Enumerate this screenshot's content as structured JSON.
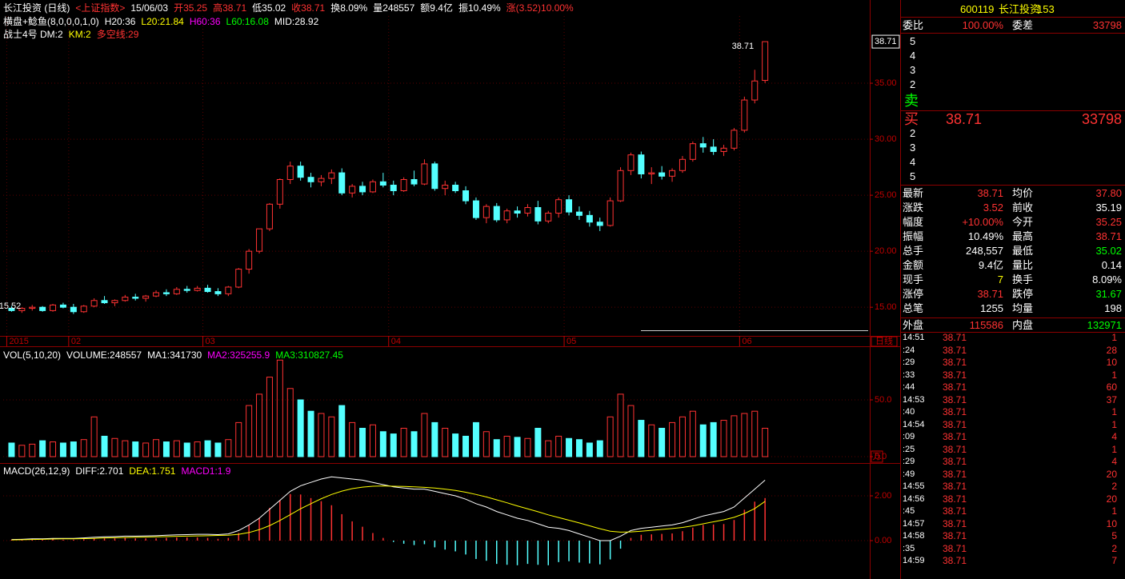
{
  "kline": {
    "header": [
      {
        "text": "长江投资 (日线)",
        "color": "#ffffff"
      },
      {
        "text": "<上证指数>",
        "color": "#ff3232"
      },
      {
        "text": "15/06/03",
        "color": "#ffffff"
      },
      {
        "text": "开35.25",
        "color": "#ff3232"
      },
      {
        "text": "高38.71",
        "color": "#ff3232"
      },
      {
        "text": "低35.02",
        "color": "#ffffff"
      },
      {
        "text": "收38.71",
        "color": "#ff3232"
      },
      {
        "text": "换8.09%",
        "color": "#ffffff"
      },
      {
        "text": "量248557",
        "color": "#ffffff"
      },
      {
        "text": "额9.4亿",
        "color": "#ffffff"
      },
      {
        "text": "振10.49%",
        "color": "#ffffff"
      },
      {
        "text": "涨(3.52)10.00%",
        "color": "#ff3232"
      }
    ],
    "indicator1": [
      {
        "text": "横盘+鲶鱼(8,0,0,0,1,0)",
        "color": "#ffffff"
      },
      {
        "text": "H20:36",
        "color": "#ffffff"
      },
      {
        "text": "L20:21.84",
        "color": "#ffff00"
      },
      {
        "text": "H60:36",
        "color": "#ff00ff"
      },
      {
        "text": "L60:16.08",
        "color": "#00ff00"
      },
      {
        "text": "MID:28.92",
        "color": "#ffffff"
      }
    ],
    "indicator2": [
      {
        "text": "战士4号 DM:2",
        "color": "#ffffff"
      },
      {
        "text": "KM:2",
        "color": "#ffff00"
      },
      {
        "text": "多空线:29",
        "color": "#ff3232"
      }
    ],
    "up_color": "#ff3232",
    "down_color": "#54ffff",
    "ylim": [
      12.8,
      41
    ],
    "yticks": [
      {
        "value": 15,
        "label": "15.00"
      },
      {
        "value": 20,
        "label": "20.00"
      },
      {
        "value": 25,
        "label": "25.00"
      },
      {
        "value": 30,
        "label": "30.00"
      },
      {
        "value": 35,
        "label": "35.00"
      }
    ],
    "last": {
      "value": 38.71,
      "label": "38.71"
    },
    "annotations": [
      {
        "index": 73,
        "value": 38.71,
        "label": "38.71"
      },
      {
        "index": 2,
        "value": 15.52,
        "label": "15.52"
      }
    ],
    "months": [
      {
        "index": 0,
        "label": "2015"
      },
      {
        "index": 6,
        "label": "02"
      },
      {
        "index": 19,
        "label": "03"
      },
      {
        "index": 37,
        "label": "04"
      },
      {
        "index": 54,
        "label": "05"
      },
      {
        "index": 71,
        "label": "06"
      }
    ],
    "period_label": "日线",
    "ohlc": [
      [
        14.9,
        15.1,
        14.6,
        14.7
      ],
      [
        14.7,
        15.0,
        14.5,
        14.9
      ],
      [
        14.9,
        15.2,
        14.7,
        15.0
      ],
      [
        15.0,
        15.1,
        14.6,
        14.7
      ],
      [
        14.7,
        15.3,
        14.6,
        15.2
      ],
      [
        15.2,
        15.4,
        14.9,
        15.0
      ],
      [
        15.0,
        15.3,
        14.4,
        14.6
      ],
      [
        14.6,
        15.2,
        14.5,
        15.1
      ],
      [
        15.1,
        15.8,
        15.0,
        15.6
      ],
      [
        15.6,
        16.0,
        15.3,
        15.4
      ],
      [
        15.4,
        15.7,
        15.1,
        15.6
      ],
      [
        15.6,
        16.1,
        15.5,
        15.9
      ],
      [
        15.9,
        16.2,
        15.6,
        15.8
      ],
      [
        15.8,
        16.1,
        15.5,
        16.0
      ],
      [
        16.0,
        16.5,
        15.9,
        16.3
      ],
      [
        16.3,
        16.6,
        16.0,
        16.2
      ],
      [
        16.2,
        16.8,
        16.1,
        16.6
      ],
      [
        16.6,
        16.9,
        16.3,
        16.5
      ],
      [
        16.5,
        16.9,
        16.4,
        16.7
      ],
      [
        16.7,
        17.0,
        16.3,
        16.4
      ],
      [
        16.4,
        16.7,
        16.0,
        16.2
      ],
      [
        16.2,
        16.9,
        16.0,
        16.8
      ],
      [
        16.8,
        18.5,
        16.7,
        18.4
      ],
      [
        18.4,
        20.2,
        18.0,
        20.0
      ],
      [
        20.0,
        22.0,
        19.8,
        22.0
      ],
      [
        22.0,
        24.3,
        21.8,
        24.2
      ],
      [
        24.2,
        26.5,
        23.8,
        26.4
      ],
      [
        26.4,
        28.0,
        26.0,
        27.6
      ],
      [
        27.6,
        28.0,
        26.3,
        26.6
      ],
      [
        26.6,
        27.0,
        25.7,
        26.2
      ],
      [
        26.2,
        26.8,
        25.8,
        26.5
      ],
      [
        26.5,
        27.3,
        26.0,
        27.0
      ],
      [
        27.0,
        27.4,
        25.0,
        25.2
      ],
      [
        25.2,
        26.0,
        24.8,
        25.8
      ],
      [
        25.8,
        26.2,
        25.0,
        25.3
      ],
      [
        25.3,
        26.4,
        25.2,
        26.2
      ],
      [
        26.2,
        27.0,
        25.7,
        25.9
      ],
      [
        25.9,
        26.3,
        25.0,
        25.4
      ],
      [
        25.4,
        26.6,
        25.3,
        26.4
      ],
      [
        26.4,
        27.2,
        25.8,
        26.0
      ],
      [
        26.0,
        28.2,
        25.9,
        27.8
      ],
      [
        27.8,
        28.0,
        25.4,
        25.6
      ],
      [
        25.6,
        26.3,
        25.0,
        25.9
      ],
      [
        25.9,
        26.2,
        25.2,
        25.4
      ],
      [
        25.4,
        25.8,
        24.2,
        24.5
      ],
      [
        24.5,
        24.8,
        22.8,
        23.0
      ],
      [
        23.0,
        24.2,
        22.5,
        24.0
      ],
      [
        24.0,
        24.3,
        22.6,
        22.8
      ],
      [
        22.8,
        23.8,
        22.5,
        23.6
      ],
      [
        23.6,
        24.0,
        23.0,
        23.4
      ],
      [
        23.4,
        24.2,
        23.1,
        23.9
      ],
      [
        23.9,
        24.5,
        22.4,
        22.7
      ],
      [
        22.7,
        23.6,
        22.5,
        23.4
      ],
      [
        23.4,
        24.8,
        23.0,
        24.6
      ],
      [
        24.6,
        25.0,
        23.2,
        23.5
      ],
      [
        23.5,
        24.0,
        22.8,
        23.2
      ],
      [
        23.2,
        23.6,
        22.2,
        22.6
      ],
      [
        22.6,
        23.0,
        21.8,
        22.3
      ],
      [
        22.3,
        24.8,
        22.2,
        24.5
      ],
      [
        24.5,
        27.5,
        24.4,
        27.2
      ],
      [
        27.2,
        28.8,
        26.8,
        28.6
      ],
      [
        28.6,
        28.9,
        26.5,
        26.9
      ],
      [
        26.9,
        27.5,
        26.0,
        27.0
      ],
      [
        27.0,
        27.6,
        26.4,
        26.7
      ],
      [
        26.7,
        27.4,
        26.2,
        27.2
      ],
      [
        27.2,
        28.5,
        27.0,
        28.2
      ],
      [
        28.2,
        29.8,
        28.0,
        29.6
      ],
      [
        29.6,
        30.2,
        28.8,
        29.3
      ],
      [
        29.3,
        30.0,
        28.6,
        28.9
      ],
      [
        28.9,
        29.5,
        28.5,
        29.2
      ],
      [
        29.2,
        31.0,
        29.0,
        30.8
      ],
      [
        30.8,
        33.8,
        30.6,
        33.5
      ],
      [
        33.5,
        36.2,
        33.2,
        35.2
      ],
      [
        35.25,
        38.71,
        35.02,
        38.71
      ]
    ]
  },
  "volume": {
    "title": [
      {
        "text": "VOL(5,10,20)",
        "color": "#ffffff"
      },
      {
        "text": "VOLUME:248557",
        "color": "#ffffff"
      },
      {
        "text": "MA1:341730",
        "color": "#ffffff"
      },
      {
        "text": "MA2:325255.9",
        "color": "#ff00ff"
      },
      {
        "text": "MA3:310827.45",
        "color": "#00ff00"
      }
    ],
    "ylim": [
      0,
      85.2
    ],
    "yticks": [
      {
        "value": 0,
        "label": "0.0"
      },
      {
        "value": 50,
        "label": "50.0"
      }
    ],
    "unit": "万",
    "values": [
      12,
      10,
      11,
      14,
      13,
      12,
      13,
      15,
      35,
      18,
      16,
      14,
      13,
      12,
      15,
      13,
      14,
      12,
      13,
      14,
      12,
      15,
      30,
      45,
      55,
      70,
      85,
      60,
      50,
      40,
      38,
      35,
      45,
      30,
      25,
      28,
      22,
      20,
      25,
      22,
      38,
      30,
      25,
      20,
      18,
      30,
      22,
      15,
      18,
      17,
      16,
      25,
      14,
      18,
      16,
      15,
      12,
      14,
      35,
      55,
      45,
      32,
      28,
      25,
      30,
      35,
      40,
      28,
      30,
      32,
      36,
      38,
      40,
      25
    ]
  },
  "macd": {
    "title": [
      {
        "text": "MACD(26,12,9)",
        "color": "#ffffff"
      },
      {
        "text": "DIFF:2.701",
        "color": "#ffffff"
      },
      {
        "text": "DEA:1.751",
        "color": "#ffff00"
      },
      {
        "text": "MACD1:1.9",
        "color": "#ff00ff"
      }
    ],
    "ylim": [
      -1.5,
      3.25
    ],
    "yticks": [
      {
        "value": 0,
        "label": "0.00"
      },
      {
        "value": 2,
        "label": "2.00"
      }
    ],
    "diff_color": "#ffffff",
    "dea_color": "#ffff00",
    "diff": [
      0.05,
      0.06,
      0.08,
      0.08,
      0.1,
      0.1,
      0.1,
      0.12,
      0.15,
      0.17,
      0.18,
      0.2,
      0.2,
      0.21,
      0.22,
      0.24,
      0.26,
      0.27,
      0.28,
      0.28,
      0.27,
      0.3,
      0.45,
      0.7,
      1.0,
      1.4,
      1.8,
      2.2,
      2.45,
      2.6,
      2.75,
      2.85,
      2.8,
      2.75,
      2.7,
      2.6,
      2.5,
      2.4,
      2.35,
      2.3,
      2.3,
      2.2,
      2.1,
      2.0,
      1.85,
      1.65,
      1.5,
      1.3,
      1.15,
      1.0,
      0.9,
      0.75,
      0.6,
      0.55,
      0.45,
      0.3,
      0.15,
      0.0,
      0.0,
      0.2,
      0.45,
      0.55,
      0.6,
      0.65,
      0.7,
      0.8,
      0.95,
      1.1,
      1.2,
      1.3,
      1.5,
      1.9,
      2.3,
      2.701
    ],
    "dea": [
      0.03,
      0.04,
      0.05,
      0.06,
      0.07,
      0.08,
      0.08,
      0.09,
      0.1,
      0.12,
      0.13,
      0.14,
      0.15,
      0.16,
      0.17,
      0.18,
      0.19,
      0.2,
      0.21,
      0.22,
      0.23,
      0.24,
      0.28,
      0.36,
      0.49,
      0.67,
      0.9,
      1.16,
      1.42,
      1.65,
      1.87,
      2.06,
      2.21,
      2.32,
      2.39,
      2.43,
      2.44,
      2.43,
      2.42,
      2.4,
      2.38,
      2.35,
      2.3,
      2.24,
      2.16,
      2.06,
      1.95,
      1.82,
      1.69,
      1.55,
      1.42,
      1.29,
      1.15,
      1.03,
      0.91,
      0.79,
      0.66,
      0.53,
      0.42,
      0.38,
      0.39,
      0.42,
      0.46,
      0.5,
      0.54,
      0.59,
      0.66,
      0.75,
      0.84,
      0.93,
      1.04,
      1.21,
      1.43,
      1.751
    ],
    "bars": [
      0.04,
      0.04,
      0.06,
      0.04,
      0.06,
      0.04,
      0.04,
      0.06,
      0.1,
      0.1,
      0.1,
      0.12,
      0.1,
      0.1,
      0.1,
      0.12,
      0.14,
      0.14,
      0.14,
      0.12,
      0.08,
      0.12,
      0.34,
      0.68,
      1.02,
      1.46,
      1.8,
      2.08,
      2.06,
      1.9,
      1.76,
      1.58,
      1.18,
      0.86,
      0.62,
      0.34,
      0.12,
      -0.06,
      -0.14,
      -0.2,
      -0.16,
      -0.3,
      -0.4,
      -0.48,
      -0.62,
      -0.82,
      -0.9,
      -1.04,
      -1.08,
      -1.1,
      -1.04,
      -1.08,
      -1.1,
      -0.96,
      -0.92,
      -0.98,
      -1.02,
      -1.06,
      -0.84,
      -0.36,
      0.12,
      0.26,
      0.28,
      0.3,
      0.32,
      0.42,
      0.58,
      0.7,
      0.72,
      0.74,
      0.92,
      1.38,
      1.74,
      1.9
    ]
  },
  "quote": {
    "code": "600119",
    "name": "长江投资",
    "num": "153",
    "ratio_label": "委比",
    "ratio": "100.00%",
    "diff_label": "委差",
    "diff": "33798",
    "sell_levels": [
      "5",
      "4",
      "3",
      "2"
    ],
    "sell_label": "卖",
    "buy_label": "买",
    "buy1_price": "38.71",
    "buy1_volume": "33798",
    "buy_levels": [
      "2",
      "3",
      "4",
      "5"
    ],
    "stats": [
      {
        "label": "最新",
        "value": "38.71",
        "color": "#ff3232"
      },
      {
        "label": "均价",
        "value": "37.80",
        "color": "#ff3232"
      },
      {
        "label": "涨跌",
        "value": "3.52",
        "color": "#ff3232"
      },
      {
        "label": "前收",
        "value": "35.19",
        "color": "#ffffff"
      },
      {
        "label": "幅度",
        "value": "+10.00%",
        "color": "#ff3232"
      },
      {
        "label": "今开",
        "value": "35.25",
        "color": "#ff3232"
      },
      {
        "label": "振幅",
        "value": "10.49%",
        "color": "#ffffff"
      },
      {
        "label": "最高",
        "value": "38.71",
        "color": "#ff3232"
      },
      {
        "label": "总手",
        "value": "248,557",
        "color": "#ffffff"
      },
      {
        "label": "最低",
        "value": "35.02",
        "color": "#00ff00"
      },
      {
        "label": "金额",
        "value": "9.4亿",
        "color": "#ffffff"
      },
      {
        "label": "量比",
        "value": "0.14",
        "color": "#ffffff"
      },
      {
        "label": "现手",
        "value": "7",
        "color": "#ffff00"
      },
      {
        "label": "换手",
        "value": "8.09%",
        "color": "#ffffff"
      },
      {
        "label": "涨停",
        "value": "38.71",
        "color": "#ff3232"
      },
      {
        "label": "跌停",
        "value": "31.67",
        "color": "#00ff00"
      },
      {
        "label": "总笔",
        "value": "1255",
        "color": "#ffffff"
      },
      {
        "label": "均量",
        "value": "198",
        "color": "#ffffff"
      }
    ],
    "outer_label": "外盘",
    "outer": "115586",
    "inner_label": "内盘",
    "inner": "132971",
    "ticks": [
      {
        "time": "14:51",
        "price": "38.71",
        "volume": "1"
      },
      {
        "time": ":24",
        "price": "38.71",
        "volume": "28"
      },
      {
        "time": ":29",
        "price": "38.71",
        "volume": "10"
      },
      {
        "time": ":33",
        "price": "38.71",
        "volume": "1"
      },
      {
        "time": ":44",
        "price": "38.71",
        "volume": "60"
      },
      {
        "time": "14:53",
        "price": "38.71",
        "volume": "37"
      },
      {
        "time": ":40",
        "price": "38.71",
        "volume": "1"
      },
      {
        "time": "14:54",
        "price": "38.71",
        "volume": "1"
      },
      {
        "time": ":09",
        "price": "38.71",
        "volume": "4"
      },
      {
        "time": ":25",
        "price": "38.71",
        "volume": "1"
      },
      {
        "time": ":29",
        "price": "38.71",
        "volume": "4"
      },
      {
        "time": ":49",
        "price": "38.71",
        "volume": "20"
      },
      {
        "time": "14:55",
        "price": "38.71",
        "volume": "2"
      },
      {
        "time": "14:56",
        "price": "38.71",
        "volume": "20"
      },
      {
        "time": ":45",
        "price": "38.71",
        "volume": "1"
      },
      {
        "time": "14:57",
        "price": "38.71",
        "volume": "10"
      },
      {
        "time": "14:58",
        "price": "38.71",
        "volume": "5"
      },
      {
        "time": ":35",
        "price": "38.71",
        "volume": "2"
      },
      {
        "time": "14:59",
        "price": "38.71",
        "volume": "7"
      }
    ]
  }
}
